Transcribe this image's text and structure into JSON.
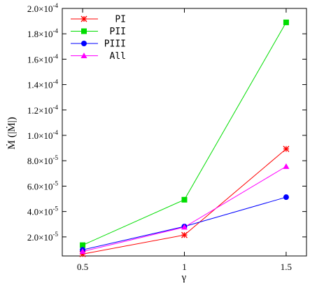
{
  "chart_data": {
    "type": "line",
    "x": [
      0.5,
      1,
      1.5
    ],
    "x_ticks": [
      "0.5",
      "1",
      "1.5"
    ],
    "xlim": [
      0.4,
      1.6
    ],
    "ylim": [
      5e-06,
      0.0002
    ],
    "y_ticks": [
      {
        "v": 2e-05,
        "mant": "2.0×10",
        "exp": "-5"
      },
      {
        "v": 4e-05,
        "mant": "4.0×10",
        "exp": "-5"
      },
      {
        "v": 6e-05,
        "mant": "6.0×10",
        "exp": "-5"
      },
      {
        "v": 8e-05,
        "mant": "8.0×10",
        "exp": "-5"
      },
      {
        "v": 0.0001,
        "mant": "1.0×10",
        "exp": "-4"
      },
      {
        "v": 0.00012,
        "mant": "1.2×10",
        "exp": "-4"
      },
      {
        "v": 0.00014,
        "mant": "1.4×10",
        "exp": "-4"
      },
      {
        "v": 0.00016,
        "mant": "1.6×10",
        "exp": "-4"
      },
      {
        "v": 0.00018,
        "mant": "1.8×10",
        "exp": "-4"
      },
      {
        "v": 0.0002,
        "mant": "2.0×10",
        "exp": "-4"
      }
    ],
    "xlabel": "γ",
    "ylabel": "Ṁ (|Ṁ|)",
    "grid": false,
    "legend_position": "top-left",
    "series": [
      {
        "name": "PI",
        "color": "#ff0000",
        "marker": "star",
        "values": [
          6.5e-06,
          2.15e-05,
          8.93e-05
        ]
      },
      {
        "name": "PII",
        "color": "#00dd00",
        "marker": "square",
        "values": [
          1.35e-05,
          4.93e-05,
          0.000189
        ]
      },
      {
        "name": "PIII",
        "color": "#0000ff",
        "marker": "circle",
        "values": [
          9.8e-06,
          2.82e-05,
          5.13e-05
        ]
      },
      {
        "name": "All",
        "color": "#ff00ff",
        "marker": "triangle",
        "values": [
          8.5e-06,
          2.77e-05,
          7.55e-05
        ]
      }
    ]
  }
}
